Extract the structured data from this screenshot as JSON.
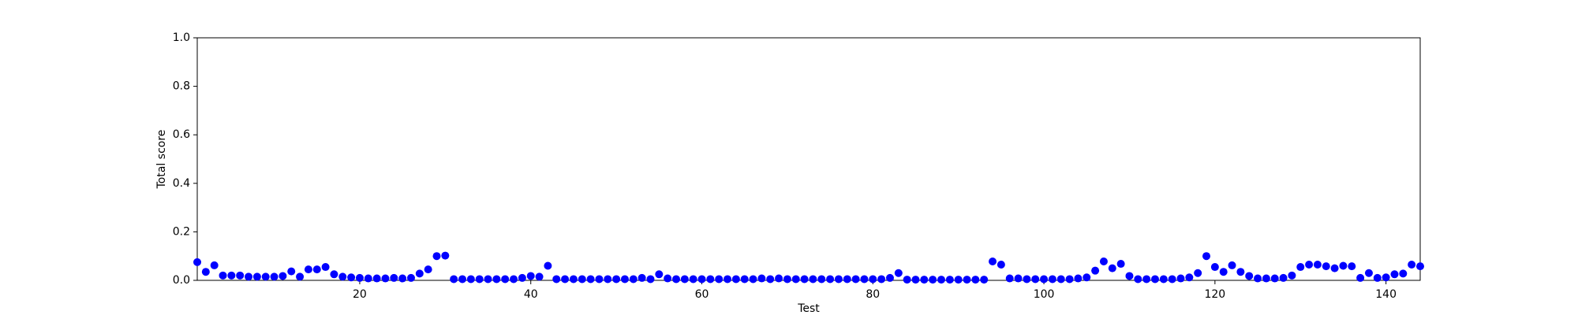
{
  "chart_data": {
    "type": "scatter",
    "x_label": "Test",
    "y_label": "Total score",
    "x": [
      1,
      2,
      3,
      4,
      5,
      6,
      7,
      8,
      9,
      10,
      11,
      12,
      13,
      14,
      15,
      16,
      17,
      18,
      19,
      20,
      21,
      22,
      23,
      24,
      25,
      26,
      27,
      28,
      29,
      30,
      31,
      32,
      33,
      34,
      35,
      36,
      37,
      38,
      39,
      40,
      41,
      42,
      43,
      44,
      45,
      46,
      47,
      48,
      49,
      50,
      51,
      52,
      53,
      54,
      55,
      56,
      57,
      58,
      59,
      60,
      61,
      62,
      63,
      64,
      65,
      66,
      67,
      68,
      69,
      70,
      71,
      72,
      73,
      74,
      75,
      76,
      77,
      78,
      79,
      80,
      81,
      82,
      83,
      84,
      85,
      86,
      87,
      88,
      89,
      90,
      91,
      92,
      93,
      94,
      95,
      96,
      97,
      98,
      99,
      100,
      101,
      102,
      103,
      104,
      105,
      106,
      107,
      108,
      109,
      110,
      111,
      112,
      113,
      114,
      115,
      116,
      117,
      118,
      119,
      120,
      121,
      122,
      123,
      124,
      125,
      126,
      127,
      128,
      129,
      130,
      131,
      132,
      133,
      134,
      135,
      136,
      137,
      138,
      139,
      140,
      141,
      142,
      143,
      144
    ],
    "values": [
      0.075,
      0.035,
      0.062,
      0.02,
      0.02,
      0.02,
      0.015,
      0.015,
      0.015,
      0.015,
      0.018,
      0.037,
      0.015,
      0.045,
      0.045,
      0.055,
      0.025,
      0.015,
      0.012,
      0.01,
      0.008,
      0.008,
      0.008,
      0.01,
      0.008,
      0.01,
      0.028,
      0.045,
      0.1,
      0.102,
      0.005,
      0.005,
      0.005,
      0.005,
      0.005,
      0.005,
      0.005,
      0.005,
      0.01,
      0.018,
      0.015,
      0.06,
      0.005,
      0.005,
      0.005,
      0.005,
      0.005,
      0.005,
      0.005,
      0.005,
      0.005,
      0.005,
      0.01,
      0.005,
      0.025,
      0.008,
      0.005,
      0.005,
      0.005,
      0.005,
      0.005,
      0.005,
      0.005,
      0.005,
      0.005,
      0.005,
      0.008,
      0.005,
      0.008,
      0.005,
      0.005,
      0.005,
      0.005,
      0.005,
      0.005,
      0.005,
      0.005,
      0.005,
      0.005,
      0.005,
      0.005,
      0.01,
      0.03,
      0.003,
      0.003,
      0.003,
      0.003,
      0.003,
      0.003,
      0.003,
      0.003,
      0.003,
      0.003,
      0.078,
      0.065,
      0.008,
      0.008,
      0.005,
      0.005,
      0.005,
      0.005,
      0.005,
      0.005,
      0.008,
      0.012,
      0.04,
      0.078,
      0.05,
      0.068,
      0.018,
      0.005,
      0.005,
      0.005,
      0.005,
      0.005,
      0.008,
      0.012,
      0.03,
      0.1,
      0.055,
      0.035,
      0.062,
      0.035,
      0.018,
      0.008,
      0.008,
      0.008,
      0.01,
      0.02,
      0.055,
      0.065,
      0.065,
      0.058,
      0.05,
      0.06,
      0.058,
      0.01,
      0.03,
      0.01,
      0.012,
      0.025,
      0.028,
      0.065,
      0.058
    ],
    "color": "#0000ff",
    "xlim": [
      1,
      144
    ],
    "xticks": [
      20,
      40,
      60,
      80,
      100,
      120,
      140
    ],
    "ylim": [
      0,
      1
    ],
    "yticks": [
      {
        "value": 0,
        "label": "0.0"
      },
      0.2,
      0.4,
      0.6,
      0.8,
      {
        "value": 1,
        "label": "1.0"
      }
    ]
  }
}
